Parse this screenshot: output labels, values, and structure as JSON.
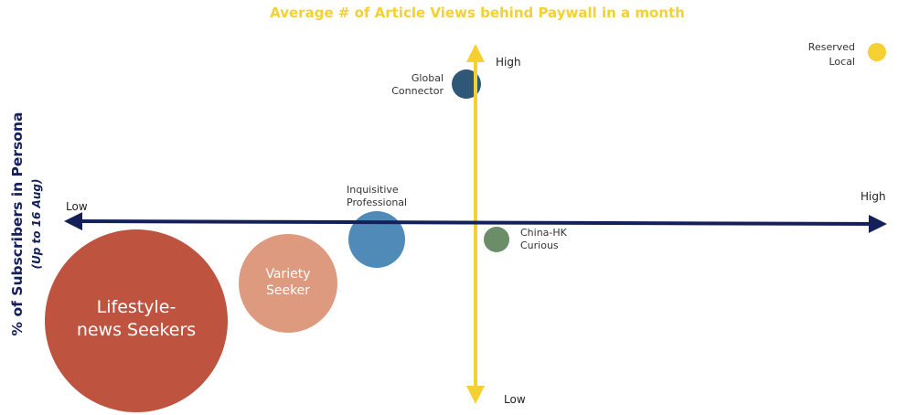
{
  "chart_data": {
    "type": "scatter",
    "title": "Average # of Article Views behind Paywall in a month",
    "ylabel": "% of Subscribers in Persona",
    "ylabel_sub": "(Up to 16 Aug)",
    "x_axis": {
      "low_label": "Low",
      "high_label": "High"
    },
    "y_axis": {
      "low_label": "Low",
      "high_label": "High"
    },
    "colors": {
      "title": "#F5D033",
      "horizontal_axis": "#13205A",
      "vertical_axis": "#F5D033"
    },
    "points": [
      {
        "name": "Global Connector",
        "label_lines": [
          "Global",
          "Connector"
        ],
        "label_position": "left",
        "color": "#2F5778",
        "relative_size": 0.07
      },
      {
        "name": "Reserved Local",
        "label_lines": [
          "Reserved",
          "Local"
        ],
        "label_position": "left",
        "color": "#F5D033",
        "relative_size": 0.04
      },
      {
        "name": "Inquisitive Professional",
        "label_lines": [
          "Inquisitive",
          "Professional"
        ],
        "label_position": "above",
        "color": "#4F8AB8",
        "relative_size": 0.13
      },
      {
        "name": "China-HK Curious",
        "label_lines": [
          "China-HK",
          "Curious"
        ],
        "label_position": "right",
        "color": "#6B8E68",
        "relative_size": 0.06
      },
      {
        "name": "Variety Seeker",
        "label_lines": [
          "Variety",
          "Seeker"
        ],
        "label_position": "inside",
        "color": "#DE9A7E",
        "relative_size": 0.22
      },
      {
        "name": "Lifestyle-news Seekers",
        "label_lines": [
          "Lifestyle-",
          "news Seekers"
        ],
        "label_position": "inside",
        "color": "#BE5440",
        "relative_size": 0.42
      }
    ]
  }
}
